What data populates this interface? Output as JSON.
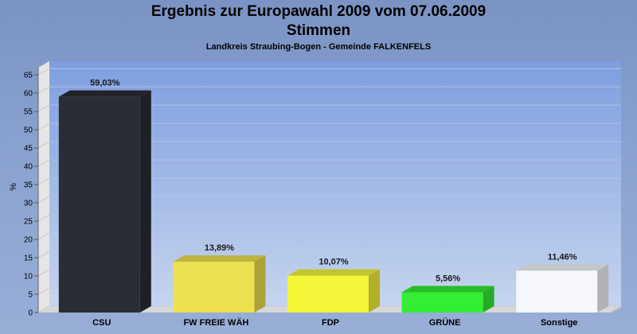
{
  "chart_data": {
    "type": "bar",
    "title": "Ergebnis zur Europawahl 2009 vom 07.06.2009",
    "subtitle": "Stimmen",
    "subsubtitle": "Landkreis Straubing-Bogen - Gemeinde FALKENFELS",
    "ylabel": "%",
    "ylim": [
      0,
      67
    ],
    "yticks": [
      "0",
      "5",
      "10",
      "15",
      "20",
      "25",
      "30",
      "35",
      "40",
      "45",
      "50",
      "55",
      "60",
      "65"
    ],
    "categories": [
      "CSU",
      "FW FREIE WÄH",
      "FDP",
      "GRÜNE",
      "Sonstige"
    ],
    "values": [
      59.03,
      13.89,
      10.07,
      5.56,
      11.46
    ],
    "labels": [
      "59,03%",
      "13,89%",
      "10,07%",
      "5,56%",
      "11,46%"
    ],
    "colors": [
      "#2a2d35",
      "#eee14f",
      "#f5f53a",
      "#33ee33",
      "#f5f7fb"
    ],
    "grid": true,
    "legend": "none"
  }
}
